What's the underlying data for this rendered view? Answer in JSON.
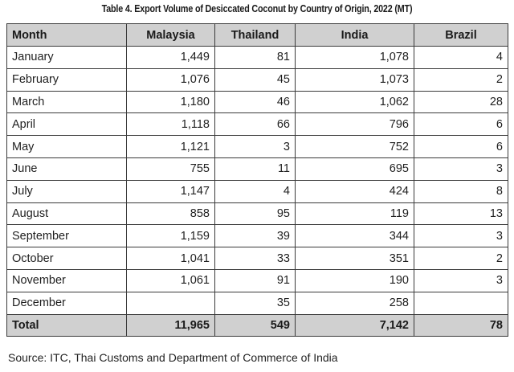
{
  "title": "Table 4. Export Volume of Desiccated Coconut by Country of Origin, 2022 (MT)",
  "table": {
    "headers": [
      "Month",
      "Malaysia",
      "Thailand",
      "India",
      "Brazil"
    ],
    "rows": [
      [
        "January",
        "1,449",
        "81",
        "1,078",
        "4"
      ],
      [
        "February",
        "1,076",
        "45",
        "1,073",
        "2"
      ],
      [
        "March",
        "1,180",
        "46",
        "1,062",
        "28"
      ],
      [
        "April",
        "1,118",
        "66",
        "796",
        "6"
      ],
      [
        "May",
        "1,121",
        "3",
        "752",
        "6"
      ],
      [
        "June",
        "755",
        "11",
        "695",
        "3"
      ],
      [
        "July",
        "1,147",
        "4",
        "424",
        "8"
      ],
      [
        "August",
        "858",
        "95",
        "119",
        "13"
      ],
      [
        "September",
        "1,159",
        "39",
        "344",
        "3"
      ],
      [
        "October",
        "1,041",
        "33",
        "351",
        "2"
      ],
      [
        "November",
        "1,061",
        "91",
        "190",
        "3"
      ],
      [
        "December",
        "",
        "35",
        "258",
        ""
      ]
    ],
    "total": [
      "Total",
      "11,965",
      "549",
      "7,142",
      "78"
    ]
  },
  "source": "Source: ITC, Thai Customs and Department of Commerce of India",
  "colors": {
    "header_background": "#d0d0d0",
    "border": "#3a3a3a",
    "text": "#1a1a1a"
  }
}
